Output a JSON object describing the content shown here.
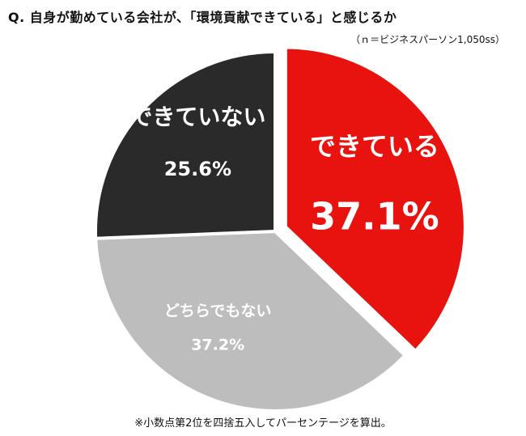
{
  "header": {
    "title": "Q. 自身が勤めている会社が、「環境貢献できている」と感じるか",
    "sample_note": "（ｎ＝ビジネスパーソン1,050ss）"
  },
  "footer": {
    "note": "※小数点第2位を四捨五入してパーセンテージを算出。"
  },
  "chart_data": {
    "type": "pie",
    "title": "Q. 自身が勤めている会社が、「環境貢献できている」と感じるか",
    "slices": [
      {
        "label": "できている",
        "value": 37.1,
        "display": "37.1%",
        "color": "#e8120e",
        "text_color": "#ffffff",
        "exploded": true
      },
      {
        "label": "どちらでもない",
        "value": 37.2,
        "display": "37.2%",
        "color": "#bdbdbd",
        "text_color": "#ffffff",
        "exploded": false
      },
      {
        "label": "できていない",
        "value": 25.6,
        "display": "25.6%",
        "color": "#2a2a2a",
        "text_color": "#ffffff",
        "exploded": false
      }
    ],
    "start": "12 o'clock",
    "direction": "clockwise",
    "legend": "none"
  }
}
